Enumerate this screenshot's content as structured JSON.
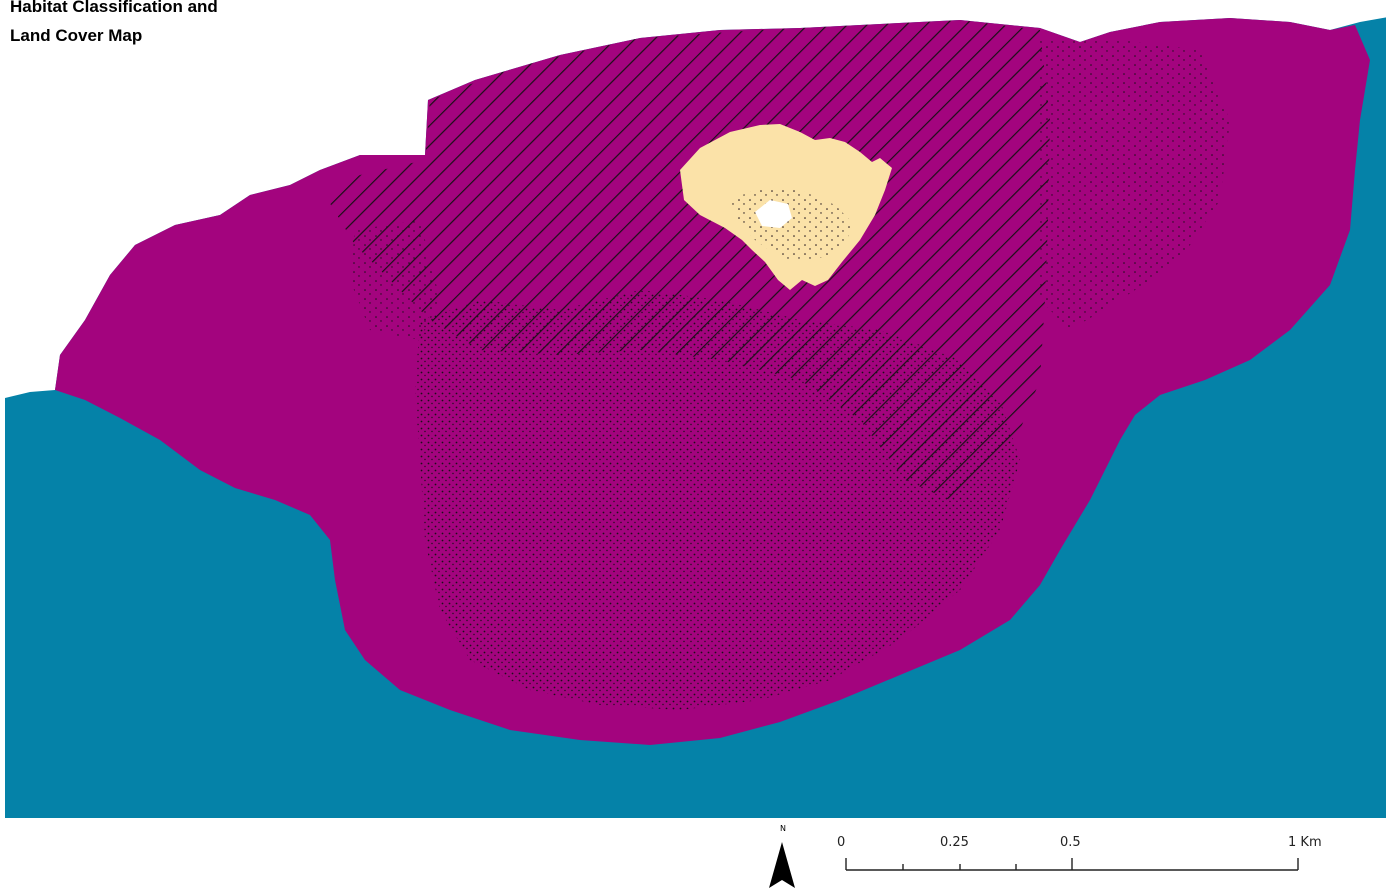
{
  "title": {
    "line1": "Habitat Classification and",
    "line2": "Land Cover Map"
  },
  "colors": {
    "water": "#0582a8",
    "vegetation": "#a3047e",
    "sand": "#fbe2a8",
    "background": "#ffffff",
    "pattern": "#1c0f18"
  },
  "north_arrow": {
    "label": "N",
    "icon": "north-arrow-icon"
  },
  "scale_bar": {
    "labels": [
      "0",
      "0.25",
      "0.5",
      "1"
    ],
    "unit": "Km"
  }
}
